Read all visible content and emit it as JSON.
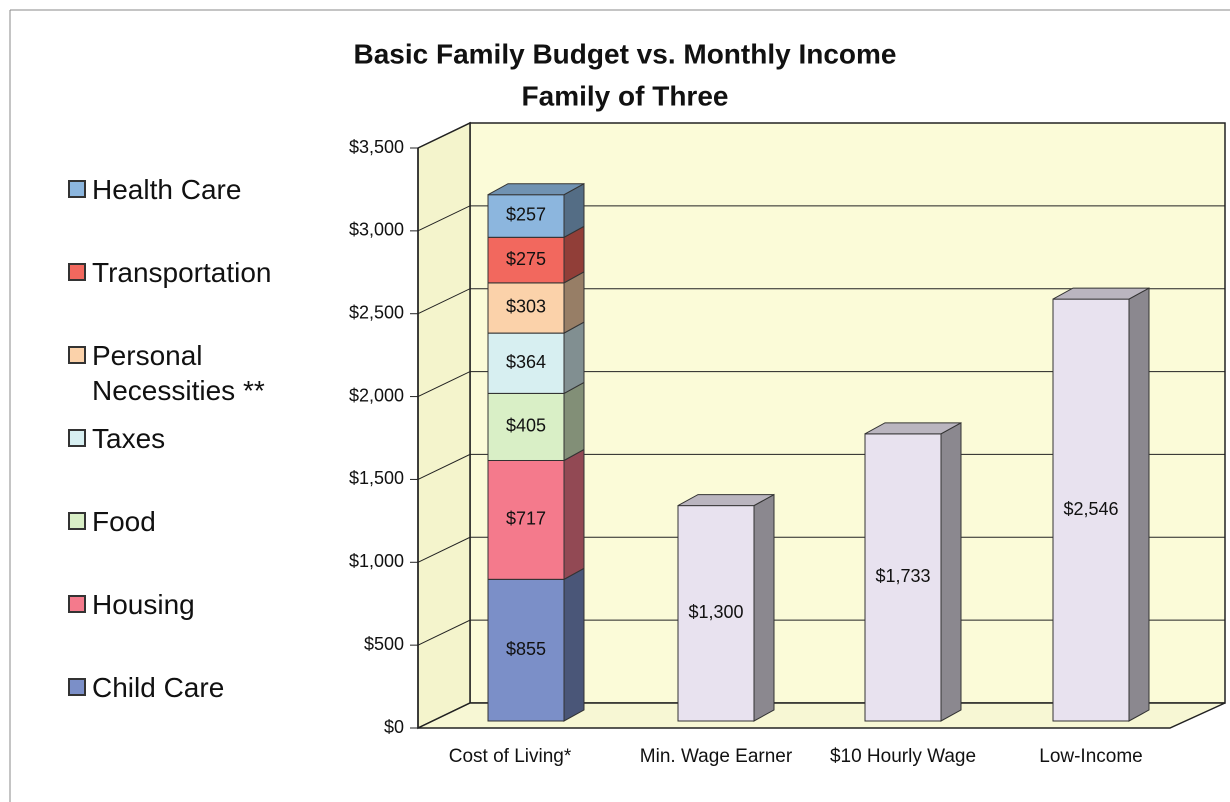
{
  "chart_data": {
    "type": "bar3d_stacked",
    "title": "Basic Family Budget vs. Monthly Income",
    "subtitle": "Family of Three",
    "categories": [
      "Cost of Living*",
      "Min. Wage Earner",
      "$10 Hourly Wage",
      "Low-Income"
    ],
    "series": [
      {
        "name": "Child Care",
        "color": "#7b8fc8",
        "values": [
          855,
          null,
          null,
          null
        ],
        "value_labels": [
          "$855",
          null,
          null,
          null
        ]
      },
      {
        "name": "Housing",
        "color": "#f47a8c",
        "values": [
          717,
          null,
          null,
          null
        ],
        "value_labels": [
          "$717",
          null,
          null,
          null
        ]
      },
      {
        "name": "Food",
        "color": "#d9efc6",
        "values": [
          405,
          null,
          null,
          null
        ],
        "value_labels": [
          "$405",
          null,
          null,
          null
        ]
      },
      {
        "name": "Taxes",
        "color": "#d7eff1",
        "values": [
          364,
          null,
          null,
          null
        ],
        "value_labels": [
          "$364",
          null,
          null,
          null
        ]
      },
      {
        "name": "Personal Necessities **",
        "color": "#fbd2aa",
        "values": [
          303,
          null,
          null,
          null
        ],
        "value_labels": [
          "$303",
          null,
          null,
          null
        ]
      },
      {
        "name": "Transportation",
        "color": "#f2685e",
        "values": [
          275,
          null,
          null,
          null
        ],
        "value_labels": [
          "$275",
          null,
          null,
          null
        ]
      },
      {
        "name": "Health Care",
        "color": "#8cb6de",
        "values": [
          257,
          null,
          null,
          null
        ],
        "value_labels": [
          "$257",
          null,
          null,
          null
        ]
      }
    ],
    "income": {
      "color": "#e8e2ef",
      "values": [
        null,
        1300,
        1733,
        2546
      ],
      "value_labels": [
        null,
        "$1,300",
        "$1,733",
        "$2,546"
      ]
    },
    "ylim": [
      0,
      3500
    ],
    "yticks": [
      {
        "value": 0,
        "label": "$0"
      },
      {
        "value": 500,
        "label": "$500"
      },
      {
        "value": 1000,
        "label": "$1,000"
      },
      {
        "value": 1500,
        "label": "$1,500"
      },
      {
        "value": 2000,
        "label": "$2,000"
      },
      {
        "value": 2500,
        "label": "$2,500"
      },
      {
        "value": 3000,
        "label": "$3,000"
      },
      {
        "value": 3500,
        "label": "$3,500"
      }
    ],
    "grid": true,
    "legend": "left"
  }
}
